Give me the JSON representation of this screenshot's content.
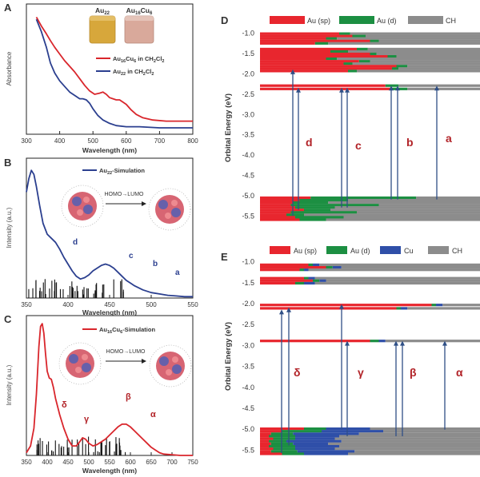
{
  "panels": {
    "A": {
      "label": "A",
      "vial_labels": [
        "Au",
        "Au",
        "Cu"
      ],
      "vial_subs": [
        "22",
        "16",
        "6"
      ]
    },
    "B": {
      "label": "B"
    },
    "C": {
      "label": "C"
    },
    "D": {
      "label": "D"
    },
    "E": {
      "label": "E"
    }
  },
  "colors": {
    "au_sp": "#e8262e",
    "au_d": "#1c8f42",
    "cu": "#2f4fa8",
    "ch": "#8c8c8c",
    "red_curve": "#d9262c",
    "blue_curve": "#2b3f8f",
    "arrow": "#2f4f86",
    "greek": "#b22328"
  },
  "chart_data": [
    {
      "id": "A",
      "type": "line",
      "xlabel": "Wavelength (nm)",
      "ylabel": "Absorbance",
      "xlim": [
        300,
        800
      ],
      "xticks": [
        "300",
        "400",
        "500",
        "600",
        "700",
        "800"
      ],
      "legend_placement": "right-middle",
      "series": [
        {
          "name": "Au16Cu6 in CH2Cl2",
          "name_parts": [
            "Au",
            "16",
            "Cu",
            "6",
            " in CH",
            "2",
            "Cl",
            "2"
          ],
          "x": [
            330,
            345,
            360,
            372,
            385,
            400,
            415,
            430,
            445,
            460,
            475,
            490,
            505,
            520,
            530,
            540,
            550,
            560,
            570,
            580,
            590,
            600,
            615,
            630,
            650,
            680,
            720,
            760,
            800
          ],
          "y": [
            0.99,
            0.91,
            0.84,
            0.78,
            0.72,
            0.66,
            0.6,
            0.55,
            0.5,
            0.44,
            0.38,
            0.33,
            0.3,
            0.31,
            0.32,
            0.3,
            0.27,
            0.26,
            0.25,
            0.25,
            0.23,
            0.21,
            0.16,
            0.12,
            0.09,
            0.07,
            0.06,
            0.06,
            0.06
          ]
        },
        {
          "name": "Au22 in CH2Cl2",
          "name_parts": [
            "Au",
            "22",
            "",
            "",
            " in CH",
            "2",
            "Cl",
            "2"
          ],
          "x": [
            330,
            345,
            360,
            372,
            385,
            400,
            415,
            430,
            445,
            460,
            470,
            480,
            490,
            500,
            515,
            530,
            550,
            570,
            600,
            640,
            700,
            760,
            800
          ],
          "y": [
            0.97,
            0.86,
            0.72,
            0.58,
            0.49,
            0.42,
            0.37,
            0.32,
            0.29,
            0.26,
            0.26,
            0.25,
            0.22,
            0.17,
            0.11,
            0.07,
            0.04,
            0.02,
            0.01,
            0.01,
            0.0,
            0.0,
            0.0
          ]
        }
      ]
    },
    {
      "id": "B",
      "type": "line",
      "xlabel": "Wavelength (nm)",
      "ylabel": "Intensity (a.u.)",
      "xlim": [
        350,
        550
      ],
      "xticks": [
        "350",
        "400",
        "450",
        "500",
        "550"
      ],
      "legend_placement": "top-middle",
      "series": [
        {
          "name": "Au22-Simulation",
          "name_parts": [
            "Au",
            "22",
            "-Simulation"
          ],
          "x": [
            350,
            353,
            356,
            359,
            362,
            366,
            370,
            375,
            380,
            385,
            390,
            395,
            400,
            405,
            410,
            415,
            420,
            425,
            430,
            435,
            440,
            445,
            450,
            455,
            460,
            465,
            470,
            475,
            480,
            490,
            500,
            510,
            520,
            530,
            540,
            550
          ],
          "y": [
            0.78,
            0.88,
            0.94,
            0.91,
            0.82,
            0.68,
            0.55,
            0.47,
            0.44,
            0.41,
            0.36,
            0.3,
            0.25,
            0.2,
            0.16,
            0.14,
            0.15,
            0.17,
            0.2,
            0.22,
            0.24,
            0.25,
            0.24,
            0.22,
            0.19,
            0.16,
            0.13,
            0.11,
            0.09,
            0.06,
            0.04,
            0.03,
            0.02,
            0.015,
            0.01,
            0.01
          ]
        }
      ],
      "annotations": [
        "d",
        "c",
        "b",
        "a"
      ],
      "homo_lumo": "HOMO→LUMO"
    },
    {
      "id": "C",
      "type": "line",
      "xlabel": "Wavelength (nm)",
      "ylabel": "Intensity (a.u.)",
      "xlim": [
        350,
        750
      ],
      "xticks": [
        "350",
        "400",
        "450",
        "500",
        "550",
        "600",
        "650",
        "700",
        "750"
      ],
      "legend_placement": "top-middle",
      "series": [
        {
          "name": "Au16Cu6-Simulation",
          "name_parts": [
            "Au",
            "16",
            "Cu",
            "6",
            "-Simulation"
          ],
          "x": [
            350,
            360,
            368,
            374,
            380,
            384,
            388,
            392,
            396,
            400,
            405,
            410,
            415,
            420,
            430,
            440,
            450,
            460,
            470,
            478,
            485,
            492,
            500,
            510,
            520,
            530,
            540,
            550,
            560,
            570,
            580,
            590,
            600,
            610,
            620,
            630,
            640,
            650,
            660,
            670,
            680,
            700,
            720,
            750
          ],
          "y": [
            0.02,
            0.07,
            0.2,
            0.45,
            0.8,
            0.95,
            0.97,
            0.9,
            0.75,
            0.62,
            0.57,
            0.56,
            0.5,
            0.42,
            0.3,
            0.2,
            0.12,
            0.07,
            0.07,
            0.1,
            0.13,
            0.12,
            0.09,
            0.07,
            0.08,
            0.1,
            0.12,
            0.15,
            0.18,
            0.21,
            0.23,
            0.23,
            0.21,
            0.18,
            0.15,
            0.12,
            0.09,
            0.06,
            0.04,
            0.02,
            0.01,
            0.005,
            0.0,
            0.0
          ]
        }
      ],
      "annotations": [
        "δ",
        "γ",
        "β",
        "α"
      ],
      "homo_lumo": "HOMO→LUMO"
    },
    {
      "id": "D",
      "type": "bar",
      "ylabel": "Orbital Energy (eV)",
      "ylim": [
        -5.6,
        -0.9
      ],
      "yticks": [
        "-1.0",
        "-1.5",
        "-2.0",
        "-2.5",
        "-3.0",
        "-3.5",
        "-4.0",
        "-4.5",
        "-5.0",
        "-5.5"
      ],
      "legend": [
        "Au (sp)",
        "Au (d)",
        "CH"
      ],
      "levels": [
        {
          "e": -1.02,
          "c": [
            0.36,
            0.05,
            0.59
          ]
        },
        {
          "e": -1.08,
          "c": [
            0.42,
            0.06,
            0.52
          ]
        },
        {
          "e": -1.14,
          "c": [
            0.3,
            0.05,
            0.65
          ]
        },
        {
          "e": -1.2,
          "c": [
            0.5,
            0.04,
            0.46
          ]
        },
        {
          "e": -1.26,
          "c": [
            0.25,
            0.06,
            0.69
          ]
        },
        {
          "e": -1.4,
          "c": [
            0.44,
            0.05,
            0.51
          ]
        },
        {
          "e": -1.46,
          "c": [
            0.32,
            0.08,
            0.6
          ]
        },
        {
          "e": -1.52,
          "c": [
            0.5,
            0.03,
            0.47
          ]
        },
        {
          "e": -1.58,
          "c": [
            0.58,
            0.04,
            0.38
          ]
        },
        {
          "e": -1.64,
          "c": [
            0.3,
            0.05,
            0.65
          ]
        },
        {
          "e": -1.7,
          "c": [
            0.45,
            0.05,
            0.5
          ]
        },
        {
          "e": -1.76,
          "c": [
            0.38,
            0.04,
            0.58
          ]
        },
        {
          "e": -1.82,
          "c": [
            0.62,
            0.05,
            0.33
          ]
        },
        {
          "e": -1.88,
          "c": [
            0.6,
            0.03,
            0.37
          ]
        },
        {
          "e": -1.94,
          "c": [
            0.4,
            0.04,
            0.56
          ]
        },
        {
          "e": -2.3,
          "c": [
            0.57,
            0.06,
            0.37
          ]
        },
        {
          "e": -2.38,
          "c": [
            0.6,
            0.07,
            0.33
          ]
        },
        {
          "e": -5.06,
          "c": [
            0.23,
            0.48,
            0.29
          ]
        },
        {
          "e": -5.12,
          "c": [
            0.18,
            0.22,
            0.6
          ]
        },
        {
          "e": -5.18,
          "c": [
            0.15,
            0.16,
            0.69
          ]
        },
        {
          "e": -5.24,
          "c": [
            0.14,
            0.4,
            0.46
          ]
        },
        {
          "e": -5.3,
          "c": [
            0.16,
            0.18,
            0.66
          ]
        },
        {
          "e": -5.36,
          "c": [
            0.2,
            0.12,
            0.68
          ]
        },
        {
          "e": -5.42,
          "c": [
            0.14,
            0.3,
            0.56
          ]
        },
        {
          "e": -5.48,
          "c": [
            0.12,
            0.08,
            0.8
          ]
        },
        {
          "e": -5.54,
          "c": [
            0.16,
            0.22,
            0.62
          ]
        },
        {
          "e": -5.6,
          "c": [
            0.18,
            0.12,
            0.7
          ]
        }
      ],
      "transitions": [
        {
          "from": -5.5,
          "to": -1.9
        },
        {
          "from": -5.35,
          "to": -2.35
        },
        {
          "from": -5.3,
          "to": -2.35
        },
        {
          "from": -5.3,
          "to": -2.35
        },
        {
          "from": -5.1,
          "to": -2.3
        },
        {
          "from": -5.1,
          "to": -2.3
        },
        {
          "from": -5.1,
          "to": -2.3
        }
      ],
      "labels": [
        "d",
        "c",
        "b",
        "a"
      ]
    },
    {
      "id": "E",
      "type": "bar",
      "ylabel": "Orbital Energy (eV)",
      "ylim": [
        -5.6,
        -0.9
      ],
      "yticks": [
        "-1.0",
        "-1.5",
        "-2.0",
        "-2.5",
        "-3.0",
        "-3.5",
        "-4.0",
        "-4.5",
        "-5.0",
        "-5.5"
      ],
      "legend": [
        "Au (sp)",
        "Au (d)",
        "Cu",
        "CH"
      ],
      "levels": [
        {
          "e": -1.08,
          "c": [
            0.22,
            0.02,
            0.03,
            0.73
          ]
        },
        {
          "e": -1.14,
          "c": [
            0.3,
            0.03,
            0.04,
            0.63
          ]
        },
        {
          "e": -1.2,
          "c": [
            0.18,
            0.02,
            0.02,
            0.78
          ]
        },
        {
          "e": -1.4,
          "c": [
            0.2,
            0.02,
            0.03,
            0.75
          ]
        },
        {
          "e": -1.46,
          "c": [
            0.24,
            0.03,
            0.03,
            0.7
          ]
        },
        {
          "e": -1.52,
          "c": [
            0.16,
            0.04,
            0.05,
            0.75
          ]
        },
        {
          "e": -2.04,
          "c": [
            0.78,
            0.02,
            0.03,
            0.17
          ]
        },
        {
          "e": -2.12,
          "c": [
            0.62,
            0.02,
            0.03,
            0.33
          ]
        },
        {
          "e": -2.9,
          "c": [
            0.5,
            0.04,
            0.03,
            0.43
          ]
        },
        {
          "e": -5.0,
          "c": [
            0.2,
            0.1,
            0.2,
            0.5
          ]
        },
        {
          "e": -5.06,
          "c": [
            0.1,
            0.18,
            0.28,
            0.44
          ]
        },
        {
          "e": -5.12,
          "c": [
            0.05,
            0.1,
            0.3,
            0.55
          ]
        },
        {
          "e": -5.18,
          "c": [
            0.04,
            0.12,
            0.2,
            0.64
          ]
        },
        {
          "e": -5.24,
          "c": [
            0.06,
            0.1,
            0.18,
            0.66
          ]
        },
        {
          "e": -5.3,
          "c": [
            0.04,
            0.08,
            0.25,
            0.63
          ]
        },
        {
          "e": -5.36,
          "c": [
            0.05,
            0.1,
            0.16,
            0.69
          ]
        },
        {
          "e": -5.42,
          "c": [
            0.04,
            0.12,
            0.2,
            0.64
          ]
        },
        {
          "e": -5.48,
          "c": [
            0.06,
            0.1,
            0.18,
            0.66
          ]
        },
        {
          "e": -5.54,
          "c": [
            0.05,
            0.12,
            0.26,
            0.57
          ]
        },
        {
          "e": -5.6,
          "c": [
            0.1,
            0.1,
            0.2,
            0.6
          ]
        }
      ],
      "transitions": [
        {
          "from": -5.58,
          "to": -2.15
        },
        {
          "from": -5.4,
          "to": -2.1
        },
        {
          "from": -5.02,
          "to": -2.02
        },
        {
          "from": -5.18,
          "to": -2.9
        },
        {
          "from": -5.18,
          "to": -2.9
        },
        {
          "from": -5.18,
          "to": -2.9
        },
        {
          "from": -5.02,
          "to": -2.9
        }
      ],
      "labels": [
        "δ",
        "γ",
        "β",
        "α"
      ]
    }
  ]
}
